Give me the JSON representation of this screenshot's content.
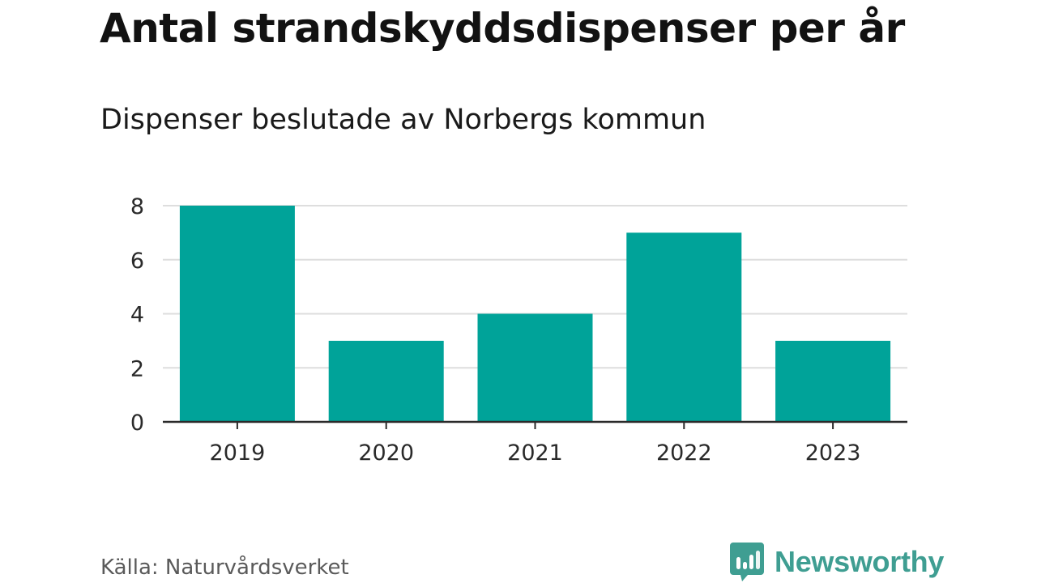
{
  "title": "Antal strandskyddsdispenser per år",
  "subtitle": "Dispenser beslutade av Norbergs kommun",
  "source": "Källa: Naturvårdsverket",
  "brand": {
    "name": "Newsworthy",
    "color": "#3f9e92",
    "icon": "bar-chart-speech-bubble-icon"
  },
  "chart_data": {
    "type": "bar",
    "title": "Antal strandskyddsdispenser per år",
    "subtitle": "Dispenser beslutade av Norbergs kommun",
    "categories": [
      "2019",
      "2020",
      "2021",
      "2022",
      "2023"
    ],
    "values": [
      8,
      3,
      4,
      7,
      3
    ],
    "xlabel": "",
    "ylabel": "",
    "ylim": [
      0,
      8
    ],
    "yticks": [
      0,
      2,
      4,
      6,
      8
    ],
    "grid": true,
    "legend": "none",
    "colors": {
      "bar": "#00a399",
      "grid": "#dedede",
      "axis": "#2a2a2a"
    }
  }
}
